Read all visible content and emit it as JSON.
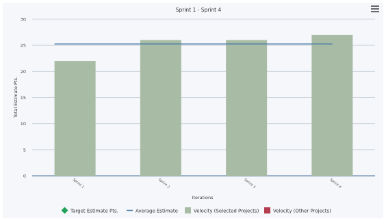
{
  "chart_data": {
    "type": "bar",
    "title": "Sprint 1 - Sprint 4",
    "xlabel": "Iterations",
    "ylabel": "Total Estimate Pts.",
    "categories": [
      "Sprint 1",
      "Sprint 2",
      "Sprint 3",
      "Sprint 4"
    ],
    "ylim": [
      0,
      30
    ],
    "yticks": [
      "0",
      "5",
      "10",
      "15",
      "20",
      "25",
      "30"
    ],
    "series": [
      {
        "name": "Velocity (Selected Projects)",
        "type": "bar",
        "color": "#a8bca5",
        "values": [
          22,
          26,
          26,
          27
        ]
      },
      {
        "name": "Average Estimate",
        "type": "line",
        "color": "#4a7ba6",
        "values": [
          25.25,
          25.25,
          25.25,
          25.25
        ]
      }
    ],
    "grid": true,
    "legend_position": "bottom",
    "legend": [
      {
        "label": "Target Estimate Pts.",
        "symbol": "diamond",
        "color": "#22a05a"
      },
      {
        "label": "Average Estimate",
        "symbol": "line",
        "color": "#4a7ba6"
      },
      {
        "label": "Velocity (Selected Projects)",
        "symbol": "square",
        "color": "#a8bca5"
      },
      {
        "label": "Velocity (Other Projects)",
        "symbol": "square",
        "color": "#b33c4e"
      }
    ]
  },
  "menu_icon": "hamburger-menu-icon"
}
